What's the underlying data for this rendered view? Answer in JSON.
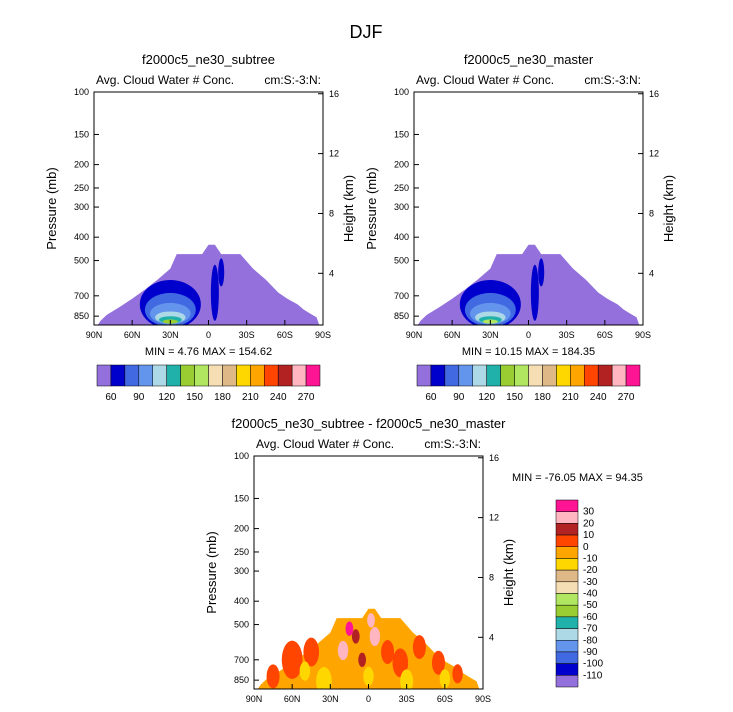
{
  "page_title": "DJF",
  "colors": [
    "#9370db",
    "#0000cd",
    "#4169e1",
    "#6495ed",
    "#add8e6",
    "#20b2aa",
    "#9acd32",
    "#b0e660",
    "#f5deb3",
    "#deb887",
    "#ffd700",
    "#ffa500",
    "#ff4500",
    "#b22222",
    "#ffb6c1",
    "#ff1493"
  ],
  "chart_data": [
    {
      "type": "heatmap",
      "title": "f2000c5_ne30_subtree",
      "subtitle_left": "Avg. Cloud Water # Conc.",
      "subtitle_right": "cm:S:-3:N:",
      "ylabel": "Pressure (mb)",
      "ylabel_right": "Height (km)",
      "x_ticks": [
        "90N",
        "60N",
        "30N",
        "0",
        "30S",
        "60S",
        "90S"
      ],
      "x_values": [
        90,
        60,
        30,
        0,
        -30,
        -60,
        -90
      ],
      "y_ticks": [
        "100",
        "150",
        "200",
        "250",
        "300",
        "400",
        "500",
        "700",
        "850"
      ],
      "y_values": [
        100,
        150,
        200,
        250,
        300,
        400,
        500,
        700,
        850
      ],
      "height_ticks": [
        "16",
        "12",
        "8",
        "4"
      ],
      "height_values": [
        16,
        12,
        8,
        4
      ],
      "ylim": [
        100,
        925
      ],
      "stats": "MIN =   4.76  MAX = 154.62",
      "colorbar_labels": [
        "60",
        "90",
        "120",
        "150",
        "180",
        "210",
        "240",
        "270"
      ]
    },
    {
      "type": "heatmap",
      "title": "f2000c5_ne30_master",
      "subtitle_left": "Avg. Cloud Water # Conc.",
      "subtitle_right": "cm:S:-3:N:",
      "ylabel": "Pressure (mb)",
      "ylabel_right": "Height (km)",
      "x_ticks": [
        "90N",
        "60N",
        "30N",
        "0",
        "30S",
        "60S",
        "90S"
      ],
      "x_values": [
        90,
        60,
        30,
        0,
        -30,
        -60,
        -90
      ],
      "y_ticks": [
        "100",
        "150",
        "200",
        "250",
        "300",
        "400",
        "500",
        "700",
        "850"
      ],
      "y_values": [
        100,
        150,
        200,
        250,
        300,
        400,
        500,
        700,
        850
      ],
      "height_ticks": [
        "16",
        "12",
        "8",
        "4"
      ],
      "height_values": [
        16,
        12,
        8,
        4
      ],
      "ylim": [
        100,
        925
      ],
      "stats": "MIN =  10.15  MAX = 184.35",
      "colorbar_labels": [
        "60",
        "90",
        "120",
        "150",
        "180",
        "210",
        "240",
        "270"
      ]
    },
    {
      "type": "heatmap",
      "title": "f2000c5_ne30_subtree - f2000c5_ne30_master",
      "subtitle_left": "Avg. Cloud Water # Conc.",
      "subtitle_right": "cm:S:-3:N:",
      "ylabel": "Pressure (mb)",
      "ylabel_right": "Height (km)",
      "x_ticks": [
        "90N",
        "60N",
        "30N",
        "0",
        "30S",
        "60S",
        "90S"
      ],
      "x_values": [
        90,
        60,
        30,
        0,
        -30,
        -60,
        -90
      ],
      "y_ticks": [
        "100",
        "150",
        "200",
        "250",
        "300",
        "400",
        "500",
        "700",
        "850"
      ],
      "y_values": [
        100,
        150,
        200,
        250,
        300,
        400,
        500,
        700,
        850
      ],
      "height_ticks": [
        "16",
        "12",
        "8",
        "4"
      ],
      "height_values": [
        16,
        12,
        8,
        4
      ],
      "ylim": [
        100,
        925
      ],
      "stats": "MIN = -76.05  MAX =  94.35",
      "colorbar_labels": [
        "30",
        "20",
        "10",
        "0",
        "-10",
        "-20",
        "-30",
        "-40",
        "-50",
        "-60",
        "-70",
        "-80",
        "-90",
        "-100",
        "-110"
      ]
    }
  ]
}
